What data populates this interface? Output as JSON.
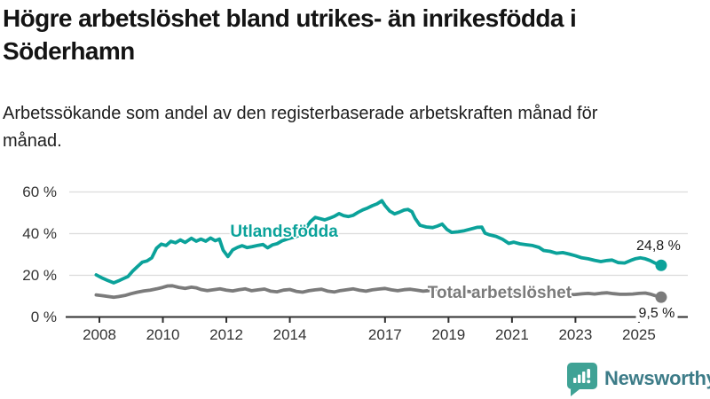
{
  "chart_data": {
    "type": "line",
    "title": "Högre arbetslöshet bland utrikes- än inrikesfödda i Söderhamn",
    "subtitle": "Arbetssökande som andel av den registerbaserade arbetskraften månad för månad.",
    "unit": "%",
    "x_range": [
      2007.9,
      2026.5
    ],
    "ylim": [
      0,
      63
    ],
    "grid": "horizontal",
    "legend_position": "inline-labels",
    "y_ticks": [
      {
        "value": 0,
        "label": "0 %"
      },
      {
        "value": 20,
        "label": "20 %"
      },
      {
        "value": 40,
        "label": "40 %"
      },
      {
        "value": 60,
        "label": "60 %"
      }
    ],
    "x_ticks": [
      {
        "year": 2008,
        "label": "2008"
      },
      {
        "year": 2010,
        "label": "2010"
      },
      {
        "year": 2012,
        "label": "2012"
      },
      {
        "year": 2014,
        "label": "2014"
      },
      {
        "year": 2017,
        "label": "2017"
      },
      {
        "year": 2019,
        "label": "2019"
      },
      {
        "year": 2021,
        "label": "2021"
      },
      {
        "year": 2023,
        "label": "2023"
      },
      {
        "year": 2025,
        "label": "2025"
      }
    ],
    "series": [
      {
        "name": "Utlandsfödda",
        "color": "#0ba29a",
        "end_label": "24,8 %",
        "last_value": 24.8,
        "label_anchor": {
          "year": 2013.82,
          "value": 40.6
        },
        "points": [
          [
            2007.9,
            20.2
          ],
          [
            2008.1,
            18.6
          ],
          [
            2008.25,
            17.6
          ],
          [
            2008.45,
            16.4
          ],
          [
            2008.6,
            17.3
          ],
          [
            2008.75,
            18.4
          ],
          [
            2008.9,
            19.4
          ],
          [
            2009.05,
            22.0
          ],
          [
            2009.2,
            24.2
          ],
          [
            2009.35,
            26.3
          ],
          [
            2009.5,
            26.9
          ],
          [
            2009.65,
            28.4
          ],
          [
            2009.8,
            33.0
          ],
          [
            2009.95,
            35.0
          ],
          [
            2010.1,
            34.3
          ],
          [
            2010.25,
            36.3
          ],
          [
            2010.4,
            35.6
          ],
          [
            2010.55,
            37.0
          ],
          [
            2010.7,
            35.8
          ],
          [
            2010.9,
            37.8
          ],
          [
            2011.05,
            36.4
          ],
          [
            2011.2,
            37.4
          ],
          [
            2011.35,
            36.4
          ],
          [
            2011.5,
            37.9
          ],
          [
            2011.65,
            36.6
          ],
          [
            2011.78,
            37.4
          ],
          [
            2011.9,
            32.0
          ],
          [
            2012.05,
            29.0
          ],
          [
            2012.2,
            32.2
          ],
          [
            2012.35,
            33.4
          ],
          [
            2012.5,
            34.2
          ],
          [
            2012.65,
            33.3
          ],
          [
            2012.82,
            33.8
          ],
          [
            2013.0,
            34.4
          ],
          [
            2013.15,
            34.8
          ],
          [
            2013.3,
            33.2
          ],
          [
            2013.45,
            34.6
          ],
          [
            2013.6,
            35.2
          ],
          [
            2013.75,
            36.5
          ],
          [
            2013.9,
            37.3
          ],
          [
            2014.05,
            38.0
          ],
          [
            2014.2,
            38.6
          ],
          [
            2014.35,
            39.6
          ],
          [
            2014.5,
            42.5
          ],
          [
            2014.65,
            45.8
          ],
          [
            2014.8,
            47.8
          ],
          [
            2014.95,
            47.2
          ],
          [
            2015.1,
            46.6
          ],
          [
            2015.25,
            47.4
          ],
          [
            2015.4,
            48.3
          ],
          [
            2015.55,
            49.6
          ],
          [
            2015.7,
            48.6
          ],
          [
            2015.85,
            48.2
          ],
          [
            2016.0,
            48.8
          ],
          [
            2016.15,
            50.2
          ],
          [
            2016.3,
            51.4
          ],
          [
            2016.45,
            52.3
          ],
          [
            2016.6,
            53.4
          ],
          [
            2016.75,
            54.3
          ],
          [
            2016.9,
            55.8
          ],
          [
            2017.0,
            53.5
          ],
          [
            2017.15,
            50.8
          ],
          [
            2017.3,
            49.5
          ],
          [
            2017.45,
            50.3
          ],
          [
            2017.6,
            51.3
          ],
          [
            2017.72,
            51.6
          ],
          [
            2017.85,
            50.5
          ],
          [
            2017.95,
            47.3
          ],
          [
            2018.1,
            44.0
          ],
          [
            2018.3,
            43.2
          ],
          [
            2018.5,
            42.9
          ],
          [
            2018.65,
            43.6
          ],
          [
            2018.8,
            44.6
          ],
          [
            2018.95,
            42.0
          ],
          [
            2019.1,
            40.6
          ],
          [
            2019.3,
            40.9
          ],
          [
            2019.5,
            41.4
          ],
          [
            2019.7,
            42.2
          ],
          [
            2019.9,
            43.0
          ],
          [
            2020.05,
            43.1
          ],
          [
            2020.15,
            40.2
          ],
          [
            2020.3,
            39.4
          ],
          [
            2020.5,
            38.7
          ],
          [
            2020.7,
            37.3
          ],
          [
            2020.9,
            35.3
          ],
          [
            2021.05,
            35.9
          ],
          [
            2021.25,
            35.1
          ],
          [
            2021.45,
            34.7
          ],
          [
            2021.65,
            34.3
          ],
          [
            2021.85,
            33.4
          ],
          [
            2022.0,
            31.9
          ],
          [
            2022.2,
            31.5
          ],
          [
            2022.4,
            30.6
          ],
          [
            2022.6,
            30.9
          ],
          [
            2022.8,
            30.2
          ],
          [
            2023.0,
            29.4
          ],
          [
            2023.2,
            28.4
          ],
          [
            2023.4,
            27.9
          ],
          [
            2023.6,
            27.2
          ],
          [
            2023.8,
            26.6
          ],
          [
            2024.0,
            27.1
          ],
          [
            2024.15,
            27.3
          ],
          [
            2024.35,
            26.1
          ],
          [
            2024.55,
            25.9
          ],
          [
            2024.75,
            27.2
          ],
          [
            2024.9,
            28.0
          ],
          [
            2025.05,
            28.4
          ],
          [
            2025.2,
            27.9
          ],
          [
            2025.35,
            27.1
          ],
          [
            2025.5,
            25.9
          ],
          [
            2025.7,
            24.8
          ]
        ]
      },
      {
        "name": "Total arbetslöshet",
        "color": "#7b7b7b",
        "end_label": "9,5 %",
        "last_value": 9.5,
        "label_anchor": {
          "year": 2020.61,
          "value": 11.1
        },
        "points": [
          [
            2007.9,
            10.6
          ],
          [
            2008.1,
            10.2
          ],
          [
            2008.3,
            9.8
          ],
          [
            2008.45,
            9.5
          ],
          [
            2008.6,
            9.8
          ],
          [
            2008.8,
            10.3
          ],
          [
            2009.0,
            11.2
          ],
          [
            2009.2,
            11.9
          ],
          [
            2009.4,
            12.5
          ],
          [
            2009.6,
            12.9
          ],
          [
            2009.8,
            13.5
          ],
          [
            2010.0,
            14.2
          ],
          [
            2010.15,
            14.9
          ],
          [
            2010.3,
            15.0
          ],
          [
            2010.5,
            14.2
          ],
          [
            2010.7,
            13.7
          ],
          [
            2010.9,
            14.3
          ],
          [
            2011.05,
            14.0
          ],
          [
            2011.2,
            13.2
          ],
          [
            2011.4,
            12.7
          ],
          [
            2011.6,
            13.1
          ],
          [
            2011.8,
            13.5
          ],
          [
            2012.0,
            12.9
          ],
          [
            2012.2,
            12.5
          ],
          [
            2012.4,
            13.1
          ],
          [
            2012.6,
            13.5
          ],
          [
            2012.8,
            12.6
          ],
          [
            2013.0,
            13.0
          ],
          [
            2013.2,
            13.4
          ],
          [
            2013.4,
            12.4
          ],
          [
            2013.6,
            12.1
          ],
          [
            2013.8,
            12.9
          ],
          [
            2014.0,
            13.2
          ],
          [
            2014.2,
            12.3
          ],
          [
            2014.4,
            11.9
          ],
          [
            2014.6,
            12.6
          ],
          [
            2014.8,
            13.0
          ],
          [
            2015.0,
            13.3
          ],
          [
            2015.2,
            12.4
          ],
          [
            2015.4,
            12.0
          ],
          [
            2015.6,
            12.7
          ],
          [
            2015.8,
            13.1
          ],
          [
            2016.0,
            13.5
          ],
          [
            2016.2,
            12.8
          ],
          [
            2016.4,
            12.4
          ],
          [
            2016.6,
            13.0
          ],
          [
            2016.8,
            13.4
          ],
          [
            2017.0,
            13.7
          ],
          [
            2017.2,
            13.0
          ],
          [
            2017.4,
            12.6
          ],
          [
            2017.6,
            13.1
          ],
          [
            2017.8,
            13.3
          ],
          [
            2018.0,
            12.9
          ],
          [
            2018.2,
            12.4
          ],
          [
            2018.4,
            12.7
          ],
          [
            2018.6,
            12.9
          ],
          [
            2018.8,
            12.5
          ],
          [
            2019.0,
            12.2
          ],
          [
            2019.2,
            11.9
          ],
          [
            2019.4,
            12.1
          ],
          [
            2019.6,
            12.3
          ],
          [
            2019.8,
            12.0
          ],
          [
            2020.0,
            12.4
          ],
          [
            2020.2,
            12.7
          ],
          [
            2020.4,
            12.5
          ],
          [
            2020.6,
            12.2
          ],
          [
            2020.8,
            11.9
          ],
          [
            2021.0,
            11.7
          ],
          [
            2021.2,
            11.4
          ],
          [
            2021.4,
            11.2
          ],
          [
            2021.6,
            11.0
          ],
          [
            2021.8,
            10.9
          ],
          [
            2022.0,
            10.8
          ],
          [
            2022.2,
            10.6
          ],
          [
            2022.4,
            10.9
          ],
          [
            2022.6,
            11.0
          ],
          [
            2022.8,
            10.7
          ],
          [
            2023.0,
            10.8
          ],
          [
            2023.2,
            11.1
          ],
          [
            2023.4,
            11.3
          ],
          [
            2023.6,
            11.0
          ],
          [
            2023.8,
            11.4
          ],
          [
            2024.0,
            11.6
          ],
          [
            2024.2,
            11.2
          ],
          [
            2024.4,
            10.9
          ],
          [
            2024.6,
            10.9
          ],
          [
            2024.8,
            11.0
          ],
          [
            2025.0,
            11.3
          ],
          [
            2025.2,
            11.5
          ],
          [
            2025.35,
            11.0
          ],
          [
            2025.5,
            10.3
          ],
          [
            2025.7,
            9.5
          ]
        ]
      }
    ]
  },
  "brand": {
    "name": "Newsworthy",
    "icon": "newsworthy-bubble-chart-icon",
    "icon_color": "#3fa295",
    "text_color": "#3d7c88"
  }
}
